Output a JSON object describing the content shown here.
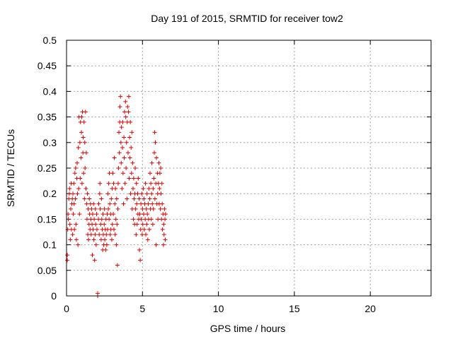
{
  "chart_data": {
    "type": "scatter",
    "title": "Day 191 of 2015, SRMTID for receiver tow2",
    "xlabel": "GPS time / hours",
    "ylabel": "SRMTID / TECUs",
    "xlim": [
      0,
      24
    ],
    "ylim": [
      0,
      0.5
    ],
    "x_ticks": [
      0,
      5,
      10,
      15,
      20
    ],
    "x_tick_labels": [
      "0",
      "5",
      "10",
      "15",
      "20"
    ],
    "y_ticks": [
      0,
      0.05,
      0.1,
      0.15,
      0.2,
      0.25,
      0.3,
      0.35,
      0.4,
      0.45,
      0.5
    ],
    "y_tick_labels": [
      "0",
      "0.05",
      "0.1",
      "0.15",
      "0.2",
      "0.25",
      "0.3",
      "0.35",
      "0.4",
      "0.45",
      "0.5"
    ],
    "grid": true,
    "marker": "plus",
    "series_color": "#e00000",
    "series": [
      {
        "name": "SRMTID",
        "points": [
          [
            0.05,
            0.08
          ],
          [
            0.05,
            0.07
          ],
          [
            0.08,
            0.13
          ],
          [
            0.1,
            0.16
          ],
          [
            0.12,
            0.15
          ],
          [
            0.15,
            0.19
          ],
          [
            0.18,
            0.2
          ],
          [
            0.2,
            0.21
          ],
          [
            0.22,
            0.14
          ],
          [
            0.25,
            0.11
          ],
          [
            0.28,
            0.17
          ],
          [
            0.3,
            0.22
          ],
          [
            0.32,
            0.13
          ],
          [
            0.35,
            0.18
          ],
          [
            0.38,
            0.19
          ],
          [
            0.4,
            0.12
          ],
          [
            0.42,
            0.2
          ],
          [
            0.45,
            0.16
          ],
          [
            0.48,
            0.22
          ],
          [
            0.5,
            0.18
          ],
          [
            0.52,
            0.13
          ],
          [
            0.55,
            0.24
          ],
          [
            0.58,
            0.19
          ],
          [
            0.6,
            0.25
          ],
          [
            0.62,
            0.14
          ],
          [
            0.65,
            0.11
          ],
          [
            0.68,
            0.23
          ],
          [
            0.7,
            0.26
          ],
          [
            0.72,
            0.2
          ],
          [
            0.75,
            0.1
          ],
          [
            0.78,
            0.29
          ],
          [
            0.8,
            0.21
          ],
          [
            0.82,
            0.35
          ],
          [
            0.85,
            0.16
          ],
          [
            0.88,
            0.3
          ],
          [
            0.9,
            0.23
          ],
          [
            0.92,
            0.34
          ],
          [
            0.95,
            0.27
          ],
          [
            0.98,
            0.32
          ],
          [
            1.0,
            0.35
          ],
          [
            1.02,
            0.22
          ],
          [
            1.05,
            0.36
          ],
          [
            1.08,
            0.28
          ],
          [
            1.1,
            0.31
          ],
          [
            1.12,
            0.24
          ],
          [
            1.15,
            0.34
          ],
          [
            1.18,
            0.19
          ],
          [
            1.2,
            0.3
          ],
          [
            1.22,
            0.25
          ],
          [
            1.25,
            0.36
          ],
          [
            1.28,
            0.21
          ],
          [
            1.3,
            0.28
          ],
          [
            1.32,
            0.18
          ],
          [
            1.35,
            0.15
          ],
          [
            1.38,
            0.2
          ],
          [
            1.4,
            0.12
          ],
          [
            1.42,
            0.17
          ],
          [
            1.45,
            0.11
          ],
          [
            1.48,
            0.14
          ],
          [
            1.5,
            0.19
          ],
          [
            1.52,
            0.16
          ],
          [
            1.55,
            0.13
          ],
          [
            1.58,
            0.18
          ],
          [
            1.6,
            0.15
          ],
          [
            1.62,
            0.12
          ],
          [
            1.65,
            0.17
          ],
          [
            1.68,
            0.14
          ],
          [
            1.7,
            0.08
          ],
          [
            1.72,
            0.16
          ],
          [
            1.75,
            0.13
          ],
          [
            1.78,
            0.18
          ],
          [
            1.8,
            0.11
          ],
          [
            1.82,
            0.15
          ],
          [
            1.85,
            0.07
          ],
          [
            1.88,
            0.12
          ],
          [
            1.9,
            0.17
          ],
          [
            1.92,
            0.14
          ],
          [
            1.95,
            0.1
          ],
          [
            1.98,
            0.16
          ],
          [
            2.0,
            0.13
          ],
          [
            2.05,
            0.0
          ],
          [
            2.05,
            0.005
          ],
          [
            2.1,
            0.15
          ],
          [
            2.12,
            0.18
          ],
          [
            2.15,
            0.12
          ],
          [
            2.18,
            0.2
          ],
          [
            2.2,
            0.22
          ],
          [
            2.22,
            0.17
          ],
          [
            2.25,
            0.14
          ],
          [
            2.28,
            0.11
          ],
          [
            2.3,
            0.19
          ],
          [
            2.32,
            0.15
          ],
          [
            2.35,
            0.13
          ],
          [
            2.38,
            0.09
          ],
          [
            2.4,
            0.16
          ],
          [
            2.42,
            0.12
          ],
          [
            2.45,
            0.1
          ],
          [
            2.48,
            0.14
          ],
          [
            2.5,
            0.17
          ],
          [
            2.52,
            0.11
          ],
          [
            2.55,
            0.13
          ],
          [
            2.58,
            0.09
          ],
          [
            2.6,
            0.15
          ],
          [
            2.62,
            0.12
          ],
          [
            2.65,
            0.1
          ],
          [
            2.68,
            0.16
          ],
          [
            2.7,
            0.13
          ],
          [
            2.72,
            0.2
          ],
          [
            2.75,
            0.17
          ],
          [
            2.78,
            0.22
          ],
          [
            2.8,
            0.15
          ],
          [
            2.82,
            0.24
          ],
          [
            2.85,
            0.18
          ],
          [
            2.88,
            0.12
          ],
          [
            2.9,
            0.16
          ],
          [
            2.92,
            0.13
          ],
          [
            2.95,
            0.19
          ],
          [
            2.98,
            0.11
          ],
          [
            3.0,
            0.21
          ],
          [
            3.02,
            0.14
          ],
          [
            3.05,
            0.24
          ],
          [
            3.08,
            0.16
          ],
          [
            3.1,
            0.22
          ],
          [
            3.12,
            0.13
          ],
          [
            3.15,
            0.27
          ],
          [
            3.18,
            0.18
          ],
          [
            3.2,
            0.12
          ],
          [
            3.22,
            0.21
          ],
          [
            3.25,
            0.15
          ],
          [
            3.28,
            0.1
          ],
          [
            3.3,
            0.19
          ],
          [
            3.32,
            0.14
          ],
          [
            3.35,
            0.06
          ],
          [
            3.38,
            0.17
          ],
          [
            3.4,
            0.22
          ],
          [
            3.42,
            0.25
          ],
          [
            3.45,
            0.32
          ],
          [
            3.48,
            0.28
          ],
          [
            3.5,
            0.34
          ],
          [
            3.52,
            0.37
          ],
          [
            3.55,
            0.39
          ],
          [
            3.58,
            0.3
          ],
          [
            3.6,
            0.26
          ],
          [
            3.62,
            0.33
          ],
          [
            3.65,
            0.21
          ],
          [
            3.68,
            0.29
          ],
          [
            3.7,
            0.34
          ],
          [
            3.72,
            0.24
          ],
          [
            3.75,
            0.18
          ],
          [
            3.78,
            0.31
          ],
          [
            3.8,
            0.27
          ],
          [
            3.82,
            0.36
          ],
          [
            3.85,
            0.22
          ],
          [
            3.88,
            0.38
          ],
          [
            3.9,
            0.35
          ],
          [
            3.92,
            0.25
          ],
          [
            3.95,
            0.3
          ],
          [
            3.98,
            0.19
          ],
          [
            4.0,
            0.34
          ],
          [
            4.02,
            0.37
          ],
          [
            4.05,
            0.28
          ],
          [
            4.08,
            0.36
          ],
          [
            4.1,
            0.39
          ],
          [
            4.12,
            0.23
          ],
          [
            4.15,
            0.31
          ],
          [
            4.18,
            0.27
          ],
          [
            4.2,
            0.34
          ],
          [
            4.22,
            0.2
          ],
          [
            4.25,
            0.29
          ],
          [
            4.28,
            0.24
          ],
          [
            4.3,
            0.32
          ],
          [
            4.32,
            0.17
          ],
          [
            4.35,
            0.26
          ],
          [
            4.38,
            0.21
          ],
          [
            4.4,
            0.15
          ],
          [
            4.42,
            0.23
          ],
          [
            4.45,
            0.19
          ],
          [
            4.48,
            0.14
          ],
          [
            4.5,
            0.2
          ],
          [
            4.52,
            0.25
          ],
          [
            4.55,
            0.17
          ],
          [
            4.58,
            0.12
          ],
          [
            4.6,
            0.22
          ],
          [
            4.62,
            0.18
          ],
          [
            4.65,
            0.14
          ],
          [
            4.68,
            0.2
          ],
          [
            4.7,
            0.16
          ],
          [
            4.72,
            0.23
          ],
          [
            4.75,
            0.15
          ],
          [
            4.78,
            0.19
          ],
          [
            4.8,
            0.09
          ],
          [
            4.82,
            0.16
          ],
          [
            4.85,
            0.07
          ],
          [
            4.88,
            0.13
          ],
          [
            4.9,
            0.18
          ],
          [
            4.92,
            0.15
          ],
          [
            4.95,
            0.2
          ],
          [
            4.98,
            0.12
          ],
          [
            5.0,
            0.17
          ],
          [
            5.02,
            0.14
          ],
          [
            5.05,
            0.21
          ],
          [
            5.08,
            0.16
          ],
          [
            5.1,
            0.19
          ],
          [
            5.12,
            0.13
          ],
          [
            5.15,
            0.18
          ],
          [
            5.18,
            0.15
          ],
          [
            5.2,
            0.22
          ],
          [
            5.22,
            0.12
          ],
          [
            5.25,
            0.17
          ],
          [
            5.28,
            0.14
          ],
          [
            5.3,
            0.2
          ],
          [
            5.32,
            0.16
          ],
          [
            5.35,
            0.11
          ],
          [
            5.38,
            0.18
          ],
          [
            5.4,
            0.15
          ],
          [
            5.42,
            0.21
          ],
          [
            5.45,
            0.13
          ],
          [
            5.48,
            0.19
          ],
          [
            5.5,
            0.24
          ],
          [
            5.52,
            0.17
          ],
          [
            5.55,
            0.22
          ],
          [
            5.58,
            0.15
          ],
          [
            5.6,
            0.2
          ],
          [
            5.62,
            0.26
          ],
          [
            5.65,
            0.18
          ],
          [
            5.68,
            0.14
          ],
          [
            5.7,
            0.21
          ],
          [
            5.72,
            0.17
          ],
          [
            5.75,
            0.23
          ],
          [
            5.78,
            0.28
          ],
          [
            5.8,
            0.32
          ],
          [
            5.82,
            0.19
          ],
          [
            5.85,
            0.3
          ],
          [
            5.88,
            0.22
          ],
          [
            5.9,
            0.1
          ],
          [
            5.92,
            0.27
          ],
          [
            5.95,
            0.18
          ],
          [
            5.98,
            0.24
          ],
          [
            6.0,
            0.2
          ],
          [
            6.02,
            0.15
          ],
          [
            6.05,
            0.22
          ],
          [
            6.08,
            0.26
          ],
          [
            6.1,
            0.18
          ],
          [
            6.12,
            0.21
          ],
          [
            6.15,
            0.24
          ],
          [
            6.18,
            0.17
          ],
          [
            6.2,
            0.25
          ],
          [
            6.22,
            0.2
          ],
          [
            6.25,
            0.15
          ],
          [
            6.28,
            0.22
          ],
          [
            6.3,
            0.18
          ],
          [
            6.32,
            0.13
          ],
          [
            6.35,
            0.16
          ],
          [
            6.38,
            0.1
          ],
          [
            6.4,
            0.14
          ],
          [
            6.42,
            0.12
          ],
          [
            6.45,
            0.17
          ],
          [
            6.48,
            0.15
          ],
          [
            6.5,
            0.11
          ],
          [
            6.52,
            0.16
          ]
        ]
      }
    ]
  }
}
